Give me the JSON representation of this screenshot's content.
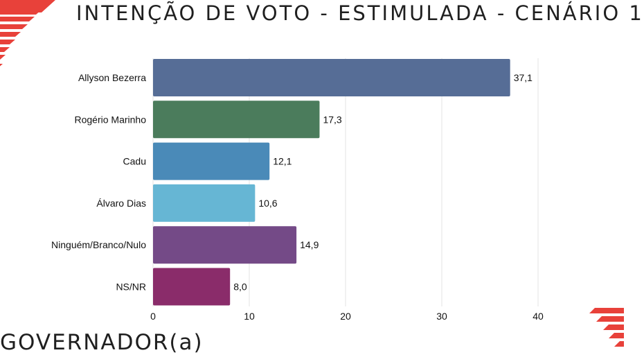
{
  "title": "INTENÇÃO DE VOTO - ESTIMULADA - CENÁRIO 1",
  "footer_text": "GOVERNADOR(a)",
  "accent_color": "#e8413a",
  "chart_data": {
    "type": "bar",
    "orientation": "horizontal",
    "categories": [
      "Allyson Bezerra",
      "Rogério Marinho",
      "Cadu",
      "Álvaro Dias",
      "Ninguém/Branco/Nulo",
      "NS/NR"
    ],
    "values": [
      37.1,
      17.3,
      12.1,
      10.6,
      14.9,
      8.0
    ],
    "value_labels": [
      "37,1",
      "17,3",
      "12,1",
      "10,6",
      "14,9",
      "8,0"
    ],
    "colors": [
      "#566d96",
      "#4b7c5c",
      "#4a8ab8",
      "#66b6d4",
      "#744a87",
      "#8a2c6a"
    ],
    "x_ticks": [
      0,
      10,
      20,
      30,
      40
    ],
    "xlim": [
      0,
      40
    ],
    "grid": true,
    "title": "",
    "xlabel": "",
    "ylabel": ""
  }
}
